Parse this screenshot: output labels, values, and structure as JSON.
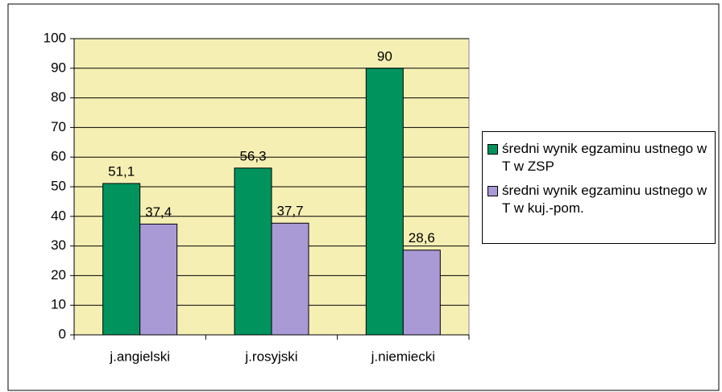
{
  "chart_data": {
    "type": "bar",
    "categories": [
      "j.angielski",
      "j.rosyjski",
      "j.niemiecki"
    ],
    "series": [
      {
        "name": "średni wynik egzaminu ustnego w T w ZSP",
        "color": "#00935e",
        "values": [
          51.1,
          56.3,
          90
        ],
        "value_labels": [
          "51,1",
          "56,3",
          "90"
        ]
      },
      {
        "name": "średni wynik egzaminu ustnego w T w kuj.-pom.",
        "color": "#a99ad6",
        "values": [
          37.4,
          37.7,
          28.6
        ],
        "value_labels": [
          "37,4",
          "37,7",
          "28,6"
        ]
      }
    ],
    "ylim": [
      0,
      100
    ],
    "yticks": [
      0,
      10,
      20,
      30,
      40,
      50,
      60,
      70,
      80,
      90,
      100
    ],
    "grid": true,
    "legend": "right",
    "plot_background": "#f6efb4"
  }
}
